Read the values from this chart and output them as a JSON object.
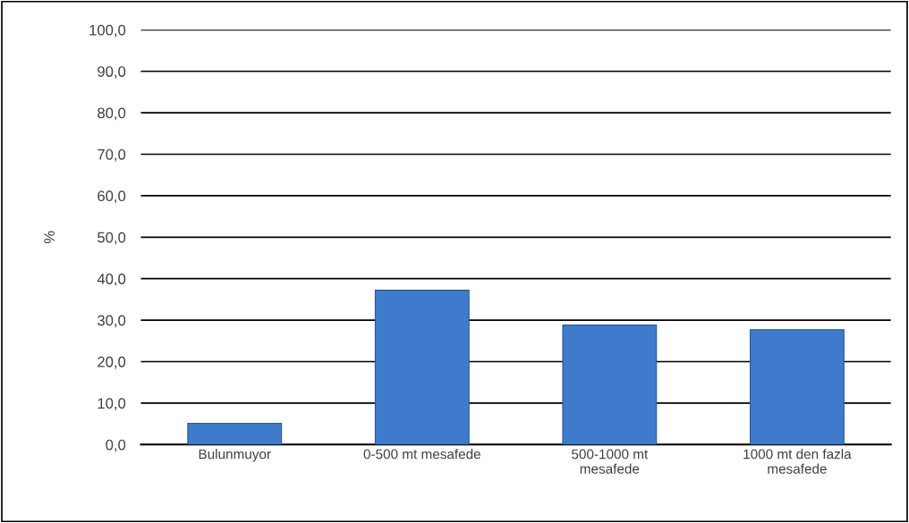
{
  "chart_data": {
    "type": "bar",
    "ylabel": "%",
    "categories": [
      "Bulunmuyor",
      "0-500 mt mesafede",
      "500-1000 mt\nmesafede",
      "1000 mt den fazla\nmesafede"
    ],
    "values": [
      5.1,
      37.2,
      28.8,
      27.7
    ],
    "color": "#3f7bcc",
    "ylim": [
      0,
      100
    ],
    "yticks": [
      {
        "value": 0,
        "label": "0,0"
      },
      {
        "value": 10,
        "label": "10,0"
      },
      {
        "value": 20,
        "label": "20,0"
      },
      {
        "value": 30,
        "label": "30,0"
      },
      {
        "value": 40,
        "label": "40,0"
      },
      {
        "value": 50,
        "label": "50,0"
      },
      {
        "value": 60,
        "label": "60,0"
      },
      {
        "value": 70,
        "label": "70,0"
      },
      {
        "value": 80,
        "label": "80,0"
      },
      {
        "value": 90,
        "label": "90,0"
      },
      {
        "value": 100,
        "label": "100,0"
      }
    ],
    "grid": "y"
  }
}
